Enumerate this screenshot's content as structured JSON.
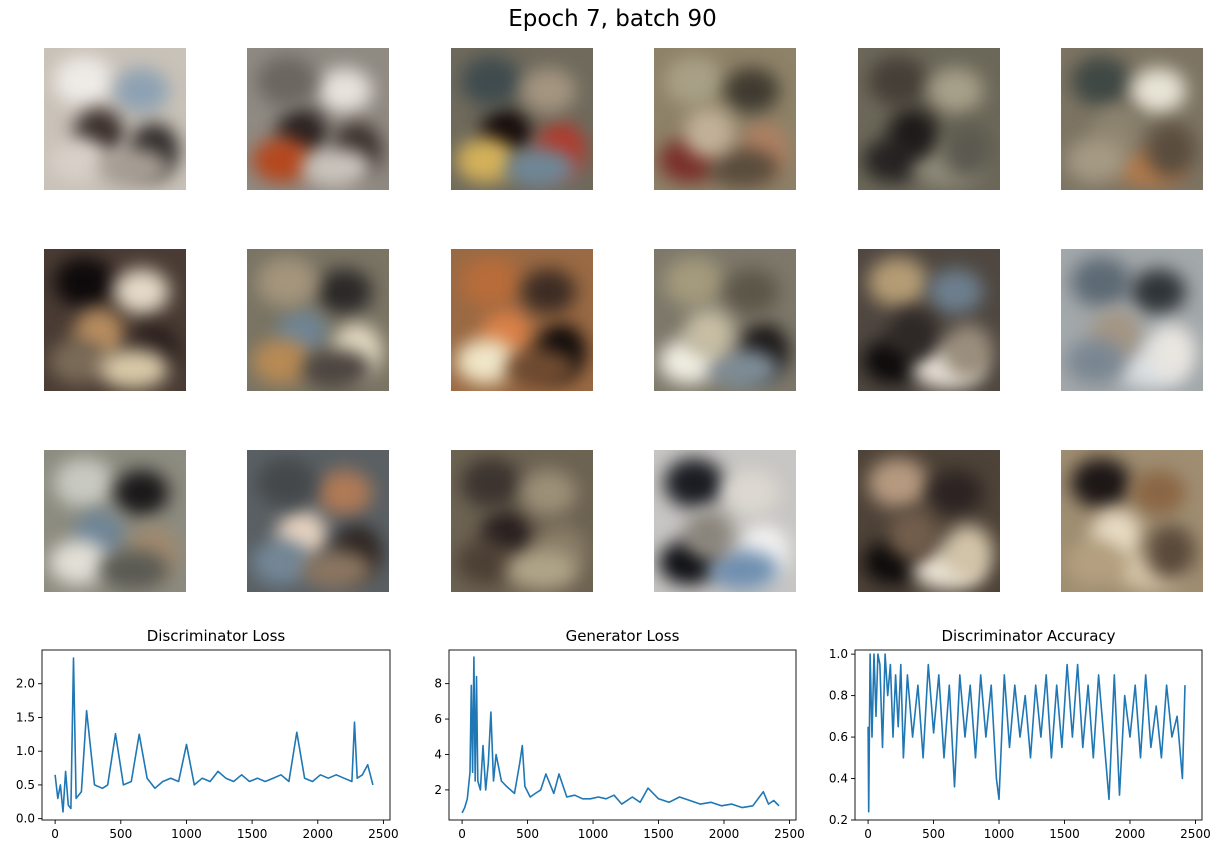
{
  "figure": {
    "title": "Epoch 7, batch 90"
  },
  "samples": {
    "rows": 3,
    "cols": 6,
    "tiles": [
      {
        "bg": "#c9c2b8",
        "blobs": [
          "#eeeae6",
          "#8da1b3",
          "#3a2e2b",
          "#2f2a2a",
          "#d8cfc8",
          "#a59d93"
        ]
      },
      {
        "bg": "#8f8a82",
        "blobs": [
          "#e8e2dc",
          "#2b2322",
          "#3a2f2a",
          "#b5481e",
          "#c9c3bc",
          "#6b6660"
        ]
      },
      {
        "bg": "#6f6a5c",
        "blobs": [
          "#160c0c",
          "#b23a2c",
          "#d4b15a",
          "#6f8796",
          "#3f4b4e",
          "#a49580"
        ]
      },
      {
        "bg": "#8e8268",
        "blobs": [
          "#b08062",
          "#7a2f2a",
          "#5a4c3c",
          "#a8a086",
          "#3f3a30",
          "#c1b198"
        ]
      },
      {
        "bg": "#6c6859",
        "blobs": [
          "#272424",
          "#8f8b7a",
          "#463f38",
          "#a7a08a",
          "#1e1a19",
          "#5c5a50"
        ]
      },
      {
        "bg": "#7d7463",
        "blobs": [
          "#b27a4c",
          "#3f4844",
          "#e8e4d6",
          "#8e8570",
          "#5a4d3e",
          "#a59a84"
        ]
      },
      {
        "bg": "#4a3c34",
        "blobs": [
          "#0e0a0b",
          "#e4dac8",
          "#b98e60",
          "#2a1f1e",
          "#7a6a58",
          "#d8c9a8"
        ]
      },
      {
        "bg": "#7a7464",
        "blobs": [
          "#2b2828",
          "#6f8595",
          "#e6dcc4",
          "#b88a54",
          "#4c4540",
          "#a4957c"
        ]
      },
      {
        "bg": "#9a6a44",
        "blobs": [
          "#d98048",
          "#0e0b0b",
          "#f0e6c8",
          "#6e4a30",
          "#b86c3a",
          "#3c2c24"
        ]
      },
      {
        "bg": "#7d786a",
        "blobs": [
          "#1a1616",
          "#f1eee4",
          "#7e8c96",
          "#a49a7c",
          "#5c5648",
          "#c7bea4"
        ]
      },
      {
        "bg": "#4f4740",
        "blobs": [
          "#0e0b0c",
          "#e8e2d8",
          "#b49c74",
          "#6d7f8e",
          "#2e2826",
          "#9a8e7c"
        ]
      },
      {
        "bg": "#a3a8ab",
        "blobs": [
          "#d9dde0",
          "#5d6a74",
          "#2f3438",
          "#a49684",
          "#e9e6e0",
          "#7a8691"
        ]
      },
      {
        "bg": "#8d8c80",
        "blobs": [
          "#c8c9c0",
          "#1a1819",
          "#6f8597",
          "#a08a6e",
          "#e2dfd6",
          "#5a5a54"
        ]
      },
      {
        "bg": "#5a6064",
        "blobs": [
          "#b07a56",
          "#e6d2c0",
          "#2d2522",
          "#738797",
          "#8a7560",
          "#44484a"
        ]
      },
      {
        "bg": "#6d6352",
        "blobs": [
          "#2a2020",
          "#8a7e68",
          "#4c4034",
          "#b0a488",
          "#3c3430",
          "#9c9078"
        ]
      },
      {
        "bg": "#c8c6c4",
        "blobs": [
          "#f4f3f2",
          "#0e0f14",
          "#6f8fb0",
          "#1a1c22",
          "#dcd8d0",
          "#8a857c"
        ]
      },
      {
        "bg": "#4e4338",
        "blobs": [
          "#0e0b0b",
          "#ebe3d4",
          "#b69a80",
          "#2c2322",
          "#735e4c",
          "#d2c4a8"
        ]
      },
      {
        "bg": "#a08e72",
        "blobs": [
          "#d6c6a8",
          "#1c1616",
          "#8a6644",
          "#e8dcc4",
          "#5a4a3a",
          "#b4a080"
        ]
      }
    ]
  },
  "chart_data": [
    {
      "type": "line",
      "title": "Discriminator Loss",
      "xlim": [
        -100,
        2550
      ],
      "ylim": [
        -0.02,
        2.5
      ],
      "xticks": [
        0,
        500,
        1000,
        1500,
        2000,
        2500
      ],
      "xtick_labels": [
        "0",
        "500",
        "1000",
        "1500",
        "2000",
        "2500"
      ],
      "yticks": [
        0.0,
        0.5,
        1.0,
        1.5,
        2.0
      ],
      "ytick_labels": [
        "0.0",
        "0.5",
        "1.0",
        "1.5",
        "2.0"
      ],
      "color": "#1f77b4",
      "series": [
        {
          "x": [
            0,
            20,
            40,
            60,
            80,
            100,
            120,
            140,
            160,
            200,
            240,
            300,
            360,
            400,
            460,
            520,
            580,
            640,
            700,
            760,
            820,
            880,
            940,
            1000,
            1060,
            1120,
            1180,
            1240,
            1300,
            1360,
            1420,
            1480,
            1540,
            1600,
            1660,
            1720,
            1780,
            1840,
            1900,
            1960,
            2020,
            2080,
            2140,
            2200,
            2260,
            2280,
            2300,
            2340,
            2380,
            2420
          ],
          "y": [
            0.65,
            0.3,
            0.5,
            0.1,
            0.7,
            0.2,
            0.15,
            2.38,
            0.3,
            0.4,
            1.6,
            0.5,
            0.45,
            0.5,
            1.26,
            0.5,
            0.55,
            1.25,
            0.6,
            0.45,
            0.55,
            0.6,
            0.55,
            1.1,
            0.5,
            0.6,
            0.55,
            0.7,
            0.6,
            0.55,
            0.65,
            0.55,
            0.6,
            0.55,
            0.6,
            0.65,
            0.55,
            1.28,
            0.6,
            0.55,
            0.65,
            0.6,
            0.65,
            0.6,
            0.55,
            1.43,
            0.6,
            0.65,
            0.8,
            0.5
          ]
        }
      ]
    },
    {
      "type": "line",
      "title": "Generator Loss",
      "xlim": [
        -100,
        2550
      ],
      "ylim": [
        0.3,
        9.9
      ],
      "xticks": [
        0,
        500,
        1000,
        1500,
        2000,
        2500
      ],
      "xtick_labels": [
        "0",
        "500",
        "1000",
        "1500",
        "2000",
        "2500"
      ],
      "yticks": [
        2,
        4,
        6,
        8
      ],
      "ytick_labels": [
        "2",
        "4",
        "6",
        "8"
      ],
      "color": "#1f77b4",
      "series": [
        {
          "x": [
            0,
            20,
            40,
            60,
            70,
            80,
            90,
            100,
            110,
            120,
            140,
            160,
            180,
            200,
            220,
            240,
            260,
            300,
            340,
            400,
            440,
            460,
            480,
            520,
            560,
            600,
            640,
            700,
            740,
            800,
            860,
            920,
            980,
            1040,
            1100,
            1160,
            1220,
            1300,
            1360,
            1420,
            1500,
            1580,
            1660,
            1740,
            1820,
            1900,
            1980,
            2060,
            2140,
            2220,
            2300,
            2340,
            2380,
            2420
          ],
          "y": [
            0.7,
            1.0,
            1.5,
            3.0,
            7.9,
            3.0,
            9.5,
            2.5,
            8.4,
            2.5,
            2.0,
            4.5,
            2.0,
            3.5,
            6.4,
            2.5,
            4.0,
            2.5,
            2.2,
            1.8,
            3.5,
            4.5,
            2.2,
            1.6,
            1.8,
            2.0,
            2.9,
            1.8,
            2.9,
            1.6,
            1.7,
            1.5,
            1.5,
            1.6,
            1.5,
            1.7,
            1.2,
            1.6,
            1.3,
            2.1,
            1.5,
            1.3,
            1.6,
            1.4,
            1.2,
            1.3,
            1.1,
            1.2,
            1.0,
            1.1,
            1.9,
            1.2,
            1.4,
            1.1
          ]
        }
      ]
    },
    {
      "type": "line",
      "title": "Discriminator Accuracy",
      "xlim": [
        -100,
        2550
      ],
      "ylim": [
        0.2,
        1.02
      ],
      "xticks": [
        0,
        500,
        1000,
        1500,
        2000,
        2500
      ],
      "xtick_labels": [
        "0",
        "500",
        "1000",
        "1500",
        "2000",
        "2500"
      ],
      "yticks": [
        0.2,
        0.4,
        0.6,
        0.8,
        1.0
      ],
      "ytick_labels": [
        "0.2",
        "0.4",
        "0.6",
        "0.8",
        "1.0"
      ],
      "color": "#1f77b4",
      "series": [
        {
          "x": [
            0,
            5,
            15,
            30,
            45,
            60,
            75,
            90,
            110,
            130,
            150,
            170,
            190,
            210,
            230,
            250,
            270,
            300,
            340,
            380,
            420,
            460,
            500,
            540,
            580,
            620,
            660,
            700,
            740,
            780,
            820,
            860,
            900,
            940,
            980,
            1000,
            1040,
            1080,
            1120,
            1160,
            1200,
            1240,
            1280,
            1320,
            1360,
            1400,
            1440,
            1480,
            1520,
            1560,
            1600,
            1640,
            1680,
            1720,
            1760,
            1800,
            1840,
            1880,
            1920,
            1960,
            2000,
            2040,
            2080,
            2120,
            2160,
            2200,
            2240,
            2280,
            2320,
            2360,
            2400,
            2420
          ],
          "y": [
            0.65,
            0.24,
            1.0,
            0.6,
            1.0,
            0.7,
            1.0,
            0.95,
            0.55,
            1.0,
            0.8,
            0.95,
            0.6,
            0.9,
            0.65,
            0.95,
            0.5,
            0.9,
            0.6,
            0.85,
            0.5,
            0.95,
            0.62,
            0.9,
            0.5,
            0.85,
            0.36,
            0.9,
            0.6,
            0.85,
            0.5,
            0.9,
            0.6,
            0.85,
            0.4,
            0.3,
            0.9,
            0.55,
            0.85,
            0.6,
            0.8,
            0.5,
            0.85,
            0.6,
            0.9,
            0.5,
            0.85,
            0.55,
            0.95,
            0.6,
            0.95,
            0.55,
            0.85,
            0.5,
            0.9,
            0.6,
            0.3,
            0.9,
            0.32,
            0.8,
            0.6,
            0.85,
            0.5,
            0.9,
            0.55,
            0.75,
            0.5,
            0.85,
            0.6,
            0.7,
            0.4,
            0.85
          ]
        }
      ]
    }
  ]
}
